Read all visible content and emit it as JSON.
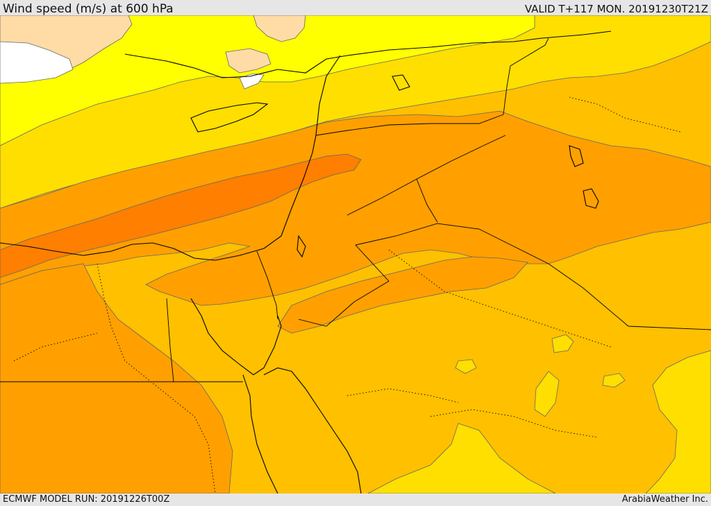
{
  "header": {
    "title": "Wind speed (m/s) at 600 hPa",
    "valid": "VALID T+117 MON. 20191230T21Z"
  },
  "footer": {
    "model_run": "ECMWF MODEL RUN: 20191226T00Z",
    "credit": "ArabiaWeather Inc."
  },
  "map": {
    "region": "Eastern Mediterranean / Middle East",
    "colors": {
      "calm": "#ffffff",
      "very_light": "#ffdca6",
      "light": "#ffff00",
      "moderate": "#ffdf00",
      "fresh": "#ffc000",
      "strong": "#ffa000",
      "very_strong": "#ff7f00",
      "coast_line": "#000000",
      "contour_line": "#555555"
    }
  }
}
